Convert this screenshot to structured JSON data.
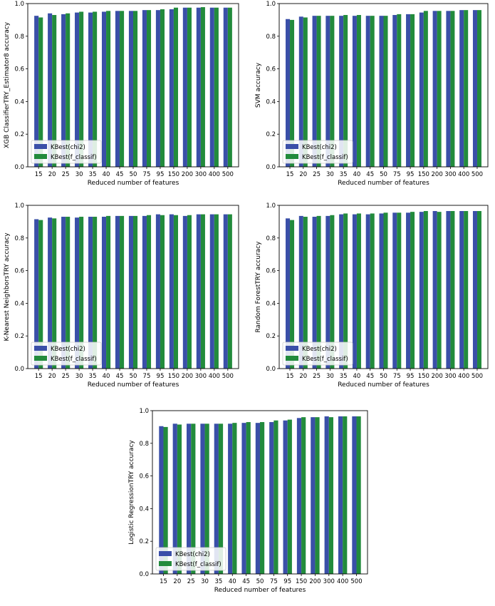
{
  "chart_data": [
    {
      "type": "bar",
      "categories": [
        "15",
        "20",
        "25",
        "30",
        "35",
        "40",
        "45",
        "50",
        "75",
        "95",
        "150",
        "200",
        "300",
        "400",
        "500"
      ],
      "series": [
        {
          "name": "KBest(chi2)",
          "values": [
            0.925,
            0.94,
            0.935,
            0.945,
            0.945,
            0.95,
            0.955,
            0.955,
            0.96,
            0.96,
            0.965,
            0.975,
            0.975,
            0.975,
            0.975
          ]
        },
        {
          "name": "KBest(f_classif)",
          "values": [
            0.915,
            0.93,
            0.94,
            0.95,
            0.95,
            0.955,
            0.955,
            0.955,
            0.96,
            0.965,
            0.975,
            0.975,
            0.978,
            0.975,
            0.975
          ]
        }
      ],
      "xlabel": "Reduced number of features",
      "ylabel": "XGB ClassifierTRY_Estimator8 accuracy",
      "ylim": [
        0,
        1.0
      ],
      "yticks": [
        "0.0",
        "0.2",
        "0.4",
        "0.6",
        "0.8",
        "1.0"
      ],
      "legend": "bottom-left",
      "colors": [
        "#3a4fa8",
        "#228b3c"
      ]
    },
    {
      "type": "bar",
      "categories": [
        "15",
        "20",
        "25",
        "30",
        "35",
        "40",
        "45",
        "50",
        "75",
        "95",
        "150",
        "200",
        "300",
        "400",
        "500"
      ],
      "series": [
        {
          "name": "KBest(chi2)",
          "values": [
            0.905,
            0.92,
            0.925,
            0.925,
            0.925,
            0.925,
            0.925,
            0.925,
            0.93,
            0.935,
            0.945,
            0.955,
            0.955,
            0.96,
            0.96
          ]
        },
        {
          "name": "KBest(f_classif)",
          "values": [
            0.9,
            0.915,
            0.925,
            0.925,
            0.93,
            0.93,
            0.925,
            0.925,
            0.935,
            0.935,
            0.955,
            0.955,
            0.955,
            0.96,
            0.96
          ]
        }
      ],
      "xlabel": "Reduced number of features",
      "ylabel": "SVM accuracy",
      "ylim": [
        0,
        1.0
      ],
      "yticks": [
        "0.0",
        "0.2",
        "0.4",
        "0.6",
        "0.8",
        "1.0"
      ],
      "legend": "bottom-left",
      "colors": [
        "#3a4fa8",
        "#228b3c"
      ]
    },
    {
      "type": "bar",
      "categories": [
        "15",
        "20",
        "25",
        "30",
        "35",
        "40",
        "45",
        "50",
        "75",
        "95",
        "150",
        "200",
        "300",
        "400",
        "500"
      ],
      "series": [
        {
          "name": "KBest(chi2)",
          "values": [
            0.915,
            0.925,
            0.93,
            0.925,
            0.93,
            0.93,
            0.935,
            0.935,
            0.935,
            0.945,
            0.945,
            0.935,
            0.945,
            0.945,
            0.945
          ]
        },
        {
          "name": "KBest(f_classif)",
          "values": [
            0.91,
            0.92,
            0.93,
            0.93,
            0.93,
            0.935,
            0.935,
            0.935,
            0.94,
            0.94,
            0.94,
            0.94,
            0.945,
            0.945,
            0.945
          ]
        }
      ],
      "xlabel": "Reduced number of features",
      "ylabel": "K-Nearest NeighborsTRY accuracy",
      "ylim": [
        0,
        1.0
      ],
      "yticks": [
        "0.0",
        "0.2",
        "0.4",
        "0.6",
        "0.8",
        "1.0"
      ],
      "legend": "bottom-left",
      "colors": [
        "#3a4fa8",
        "#228b3c"
      ]
    },
    {
      "type": "bar",
      "categories": [
        "15",
        "20",
        "25",
        "30",
        "35",
        "40",
        "45",
        "50",
        "75",
        "95",
        "150",
        "200",
        "300",
        "400",
        "500"
      ],
      "series": [
        {
          "name": "KBest(chi2)",
          "values": [
            0.92,
            0.935,
            0.93,
            0.935,
            0.945,
            0.945,
            0.945,
            0.95,
            0.955,
            0.955,
            0.96,
            0.965,
            0.965,
            0.965,
            0.965
          ]
        },
        {
          "name": "KBest(f_classif)",
          "values": [
            0.91,
            0.93,
            0.935,
            0.94,
            0.95,
            0.95,
            0.95,
            0.955,
            0.955,
            0.96,
            0.965,
            0.96,
            0.965,
            0.965,
            0.965
          ]
        }
      ],
      "xlabel": "Reduced number of features",
      "ylabel": "Random ForestTRY accuracy",
      "ylim": [
        0,
        1.0
      ],
      "yticks": [
        "0.0",
        "0.2",
        "0.4",
        "0.6",
        "0.8",
        "1.0"
      ],
      "legend": "bottom-left",
      "colors": [
        "#3a4fa8",
        "#228b3c"
      ]
    },
    {
      "type": "bar",
      "categories": [
        "15",
        "20",
        "25",
        "30",
        "35",
        "40",
        "45",
        "50",
        "75",
        "95",
        "150",
        "200",
        "300",
        "400",
        "500"
      ],
      "series": [
        {
          "name": "KBest(chi2)",
          "values": [
            0.905,
            0.92,
            0.92,
            0.92,
            0.92,
            0.92,
            0.925,
            0.925,
            0.93,
            0.94,
            0.955,
            0.96,
            0.965,
            0.965,
            0.965
          ]
        },
        {
          "name": "KBest(f_classif)",
          "values": [
            0.9,
            0.915,
            0.92,
            0.92,
            0.92,
            0.925,
            0.93,
            0.93,
            0.94,
            0.945,
            0.96,
            0.96,
            0.96,
            0.965,
            0.965
          ]
        }
      ],
      "xlabel": "Reduced number of features",
      "ylabel": "Logistic RegressionTRY accuracy",
      "ylim": [
        0,
        1.0
      ],
      "yticks": [
        "0.0",
        "0.2",
        "0.4",
        "0.6",
        "0.8",
        "1.0"
      ],
      "legend": "bottom-left",
      "colors": [
        "#3a4fa8",
        "#228b3c"
      ]
    }
  ]
}
